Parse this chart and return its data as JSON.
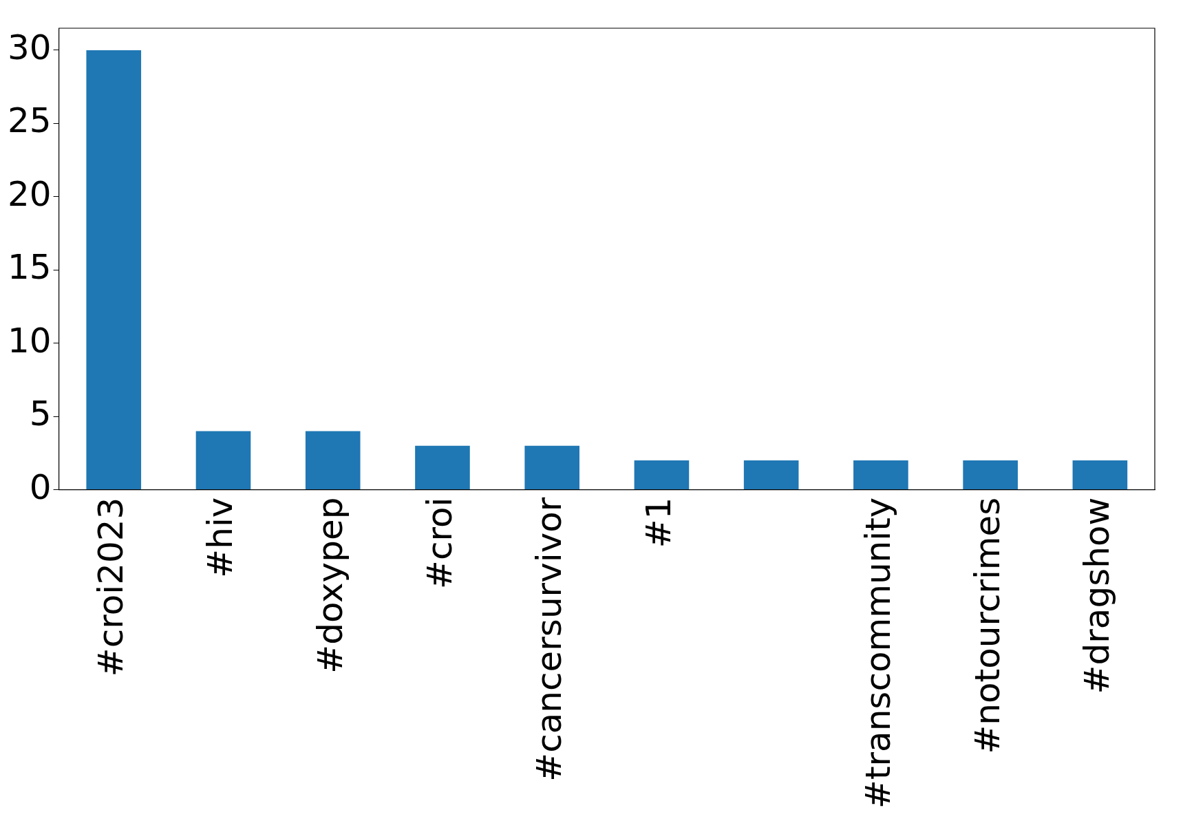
{
  "chart_data": {
    "type": "bar",
    "categories": [
      "#croi2023",
      "#hiv",
      "#doxypep",
      "#croi",
      "#cancersurvivor",
      "#1",
      null,
      "#transcommunity",
      "#notourcrimes",
      "#dragshow"
    ],
    "values": [
      30,
      4,
      4,
      3,
      3,
      2,
      2,
      2,
      2,
      2
    ],
    "color": "#1f77b4",
    "ylim": [
      0,
      31.5
    ],
    "yticks": [
      0,
      5,
      10,
      15,
      20,
      25,
      30
    ],
    "grid": false,
    "legend": false
  }
}
